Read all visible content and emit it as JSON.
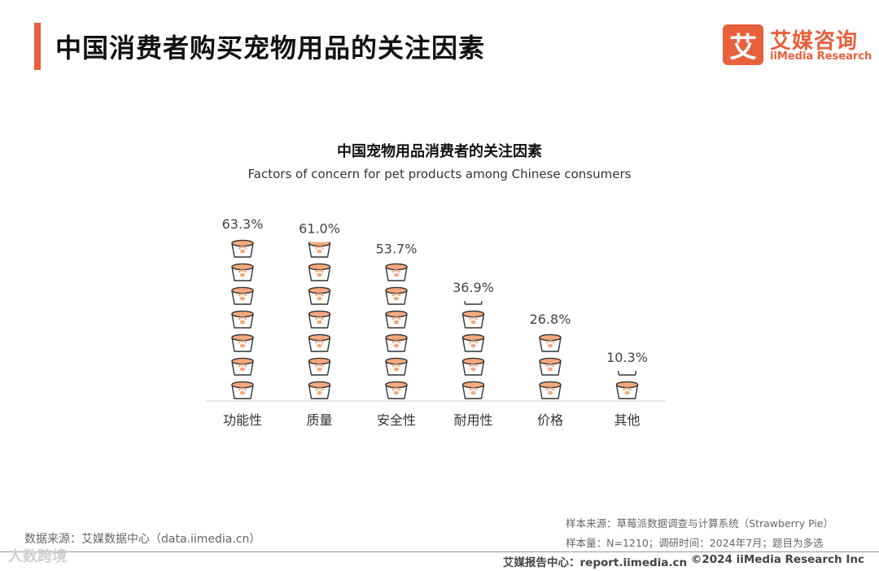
{
  "header": {
    "title": "中国消费者购买宠物用品的关注因素",
    "logo_mark": "艾",
    "logo_cn": "艾媒咨询",
    "logo_en": "iiMedia Research"
  },
  "colors": {
    "accent": "#e8603c",
    "bowl_fill": "#f4a97f",
    "bowl_stroke": "#333333",
    "baseline": "#cccccc"
  },
  "chart_data": {
    "type": "bar",
    "title": "中国宠物用品消费者的关注因素",
    "subtitle": "Factors of concern for pet products among Chinese consumers",
    "categories": [
      "功能性",
      "质量",
      "安全性",
      "耐用性",
      "价格",
      "其他"
    ],
    "values": [
      63.3,
      61.0,
      53.7,
      36.9,
      26.8,
      10.3
    ],
    "value_labels": [
      "63.3%",
      "61.0%",
      "53.7%",
      "36.9%",
      "26.8%",
      "10.3%"
    ],
    "unit": "%",
    "ylim": [
      0,
      63.3
    ],
    "xlabel": "",
    "ylabel": "",
    "mark": "pet-bowl-icon",
    "grid": false
  },
  "footer": {
    "source": "数据来源：艾媒数据中心（data.iimedia.cn）",
    "sample_source": "样本来源：草莓派数据调查与计算系统（Strawberry Pie）",
    "sample_info": "样本量：N=1210；调研时间：2024年7月；题目为多选",
    "watermark": "人数跨境",
    "report_center": "艾媒报告中心：report.iimedia.cn",
    "copyright": "©2024  iiMedia Research  Inc"
  }
}
